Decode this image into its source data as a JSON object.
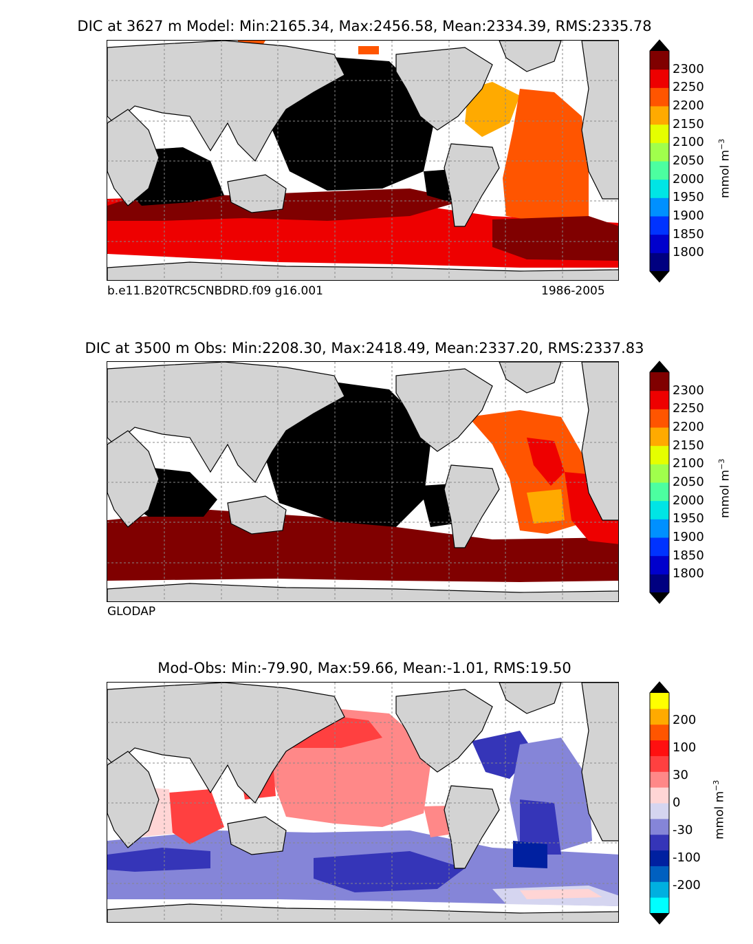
{
  "panels": [
    {
      "id": "model",
      "title": "DIC at 3627 m Model: Min:2165.34, Max:2456.58, Mean:2334.39, RMS:2335.78",
      "footer_left": "b.e11.B20TRC5CNBDRD.f09 g16.001",
      "footer_right": "1986-2005",
      "colorbar": {
        "unit": "mmol m",
        "unit_exp": "−3",
        "labels": [
          "2300",
          "2250",
          "2200",
          "2150",
          "2100",
          "2050",
          "2000",
          "1950",
          "1900",
          "1850",
          "1800"
        ],
        "colors": [
          "#000080",
          "#0000cd",
          "#0033ff",
          "#0090ff",
          "#00e5e5",
          "#4cffa0",
          "#a0ff4c",
          "#e5ff00",
          "#ffaa00",
          "#ff5500",
          "#ee0000",
          "#800000"
        ],
        "extend_colors": [
          "#000000",
          "#000000"
        ]
      }
    },
    {
      "id": "obs",
      "title": "DIC at 3500 m Obs: Min:2208.30, Max:2418.49, Mean:2337.20, RMS:2337.83",
      "footer_left": "GLODAP",
      "footer_right": "",
      "colorbar": {
        "unit": "mmol m",
        "unit_exp": "−3",
        "labels": [
          "2300",
          "2250",
          "2200",
          "2150",
          "2100",
          "2050",
          "2000",
          "1950",
          "1900",
          "1850",
          "1800"
        ],
        "colors": [
          "#000080",
          "#0000cd",
          "#0033ff",
          "#0090ff",
          "#00e5e5",
          "#4cffa0",
          "#a0ff4c",
          "#e5ff00",
          "#ffaa00",
          "#ff5500",
          "#ee0000",
          "#800000"
        ],
        "extend_colors": [
          "#000000",
          "#000000"
        ]
      }
    },
    {
      "id": "diff",
      "title": "Mod-Obs: Min:-79.90, Max:59.66, Mean:-1.01, RMS:19.50",
      "footer_left": "",
      "footer_right": "",
      "colorbar": {
        "unit": "mmol m",
        "unit_exp": "−3",
        "labels": [
          "200",
          "100",
          "30",
          "0",
          "-30",
          "-100",
          "-200"
        ],
        "colors": [
          "#00ffff",
          "#00b0e0",
          "#0060c0",
          "#0020a0",
          "#3535b8",
          "#8585d8",
          "#d5d5f0",
          "#ffd5d5",
          "#ff8888",
          "#ff4040",
          "#ff1010",
          "#ff5500",
          "#ffaa00",
          "#ffff00"
        ],
        "extend_colors": [
          "#000000",
          "#000000"
        ]
      }
    }
  ],
  "colors": {
    "land": "#d3d3d3",
    "coast": "#000000",
    "grid": "#888888",
    "nodata": "#ffffff"
  },
  "map": {
    "lon_range": [
      20,
      380
    ],
    "lat_range": [
      -90,
      90
    ],
    "lon_grid": [
      60,
      100,
      140,
      180,
      220,
      260,
      300,
      340
    ],
    "lat_grid": [
      -60,
      -30,
      0,
      30,
      60
    ]
  }
}
